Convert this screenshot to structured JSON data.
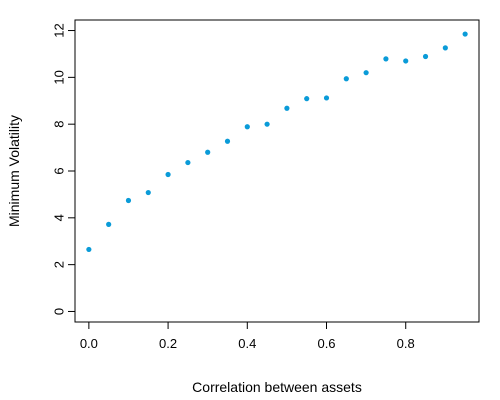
{
  "chart_data": {
    "type": "scatter",
    "title": "",
    "xlabel": "Correlation between assets",
    "ylabel": "Minimum Volatility",
    "xlim": [
      -0.035,
      0.985
    ],
    "ylim": [
      -0.45,
      12.45
    ],
    "x_ticks": [
      "0.0",
      "0.2",
      "0.4",
      "0.6",
      "0.8"
    ],
    "x_tick_values": [
      0.0,
      0.2,
      0.4,
      0.6,
      0.8
    ],
    "y_ticks": [
      "0",
      "2",
      "4",
      "6",
      "8",
      "10",
      "12"
    ],
    "y_tick_values": [
      0,
      2,
      4,
      6,
      8,
      10,
      12
    ],
    "grid": false,
    "point_color": "#0a9bd8",
    "series": [
      {
        "x": [
          0.0,
          0.05,
          0.1,
          0.15,
          0.2,
          0.25,
          0.3,
          0.35,
          0.4,
          0.45,
          0.5,
          0.55,
          0.6,
          0.65,
          0.7,
          0.75,
          0.8,
          0.85,
          0.9,
          0.95
        ],
        "y": [
          2.65,
          3.72,
          4.74,
          5.08,
          5.85,
          6.36,
          6.8,
          7.27,
          7.89,
          8.0,
          8.68,
          9.09,
          9.12,
          9.94,
          10.2,
          10.79,
          10.7,
          10.89,
          11.26,
          11.85
        ]
      }
    ]
  }
}
